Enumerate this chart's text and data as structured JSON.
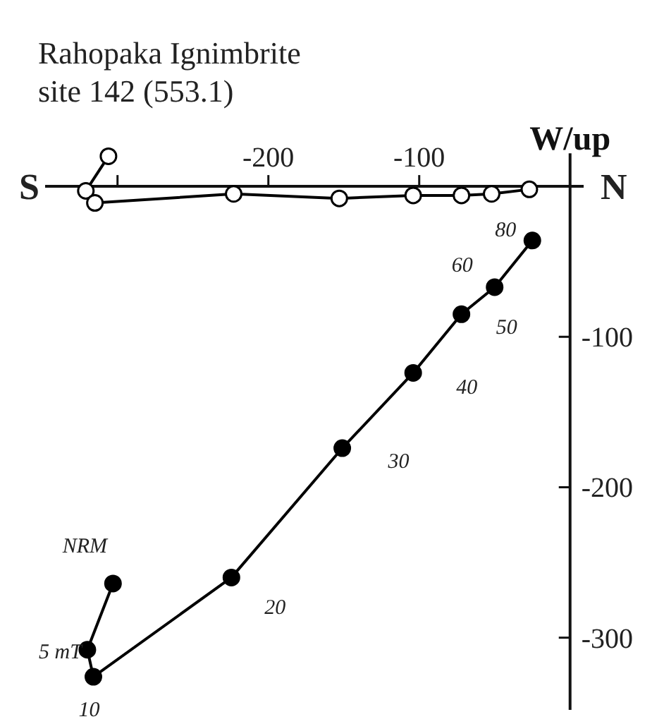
{
  "chart_data": {
    "type": "line",
    "title": "Rahopaka Ignimbrite",
    "subtitle": "site 142 (553.1)",
    "ylabel": "W/up",
    "xlim": [
      -348,
      9
    ],
    "ylim": [
      -348,
      22
    ],
    "xticks": [
      {
        "value": -300,
        "label": null
      },
      -200,
      -100
    ],
    "yticks": [
      -100,
      -200,
      -300
    ],
    "marker": "circle",
    "line_style": "solid",
    "grid": false,
    "series": [
      {
        "color": "#000000",
        "x": [
          -303,
          -320,
          -316,
          -224.5,
          -151,
          -104,
          -72,
          -50,
          -25
        ],
        "values": [
          -264,
          -308,
          -326,
          -260,
          -174,
          -124,
          -85,
          -67,
          -36
        ]
      },
      {
        "color": "#000000",
        "x": [
          -306,
          -321,
          -315,
          -223,
          -153,
          -104,
          -72,
          -52,
          -27
        ],
        "values": [
          20,
          -3,
          -11,
          -5,
          -8,
          -6,
          -6,
          -5,
          -2
        ]
      }
    ],
    "annotations": [
      "S",
      "N",
      {
        "text": "NRM",
        "x": -303,
        "y": -264
      },
      {
        "text": "5 mT",
        "x": -320,
        "y": -308
      },
      {
        "text": "10",
        "x": -316,
        "y": -326
      },
      {
        "text": "20",
        "x": -224.5,
        "y": -260
      },
      {
        "text": "30",
        "x": -151,
        "y": -174
      },
      {
        "text": "40",
        "x": -104,
        "y": -124
      },
      {
        "text": "50",
        "x": -72,
        "y": -85
      },
      {
        "text": "60",
        "x": -50,
        "y": -67
      },
      {
        "text": "80",
        "x": -25,
        "y": -36
      }
    ]
  }
}
